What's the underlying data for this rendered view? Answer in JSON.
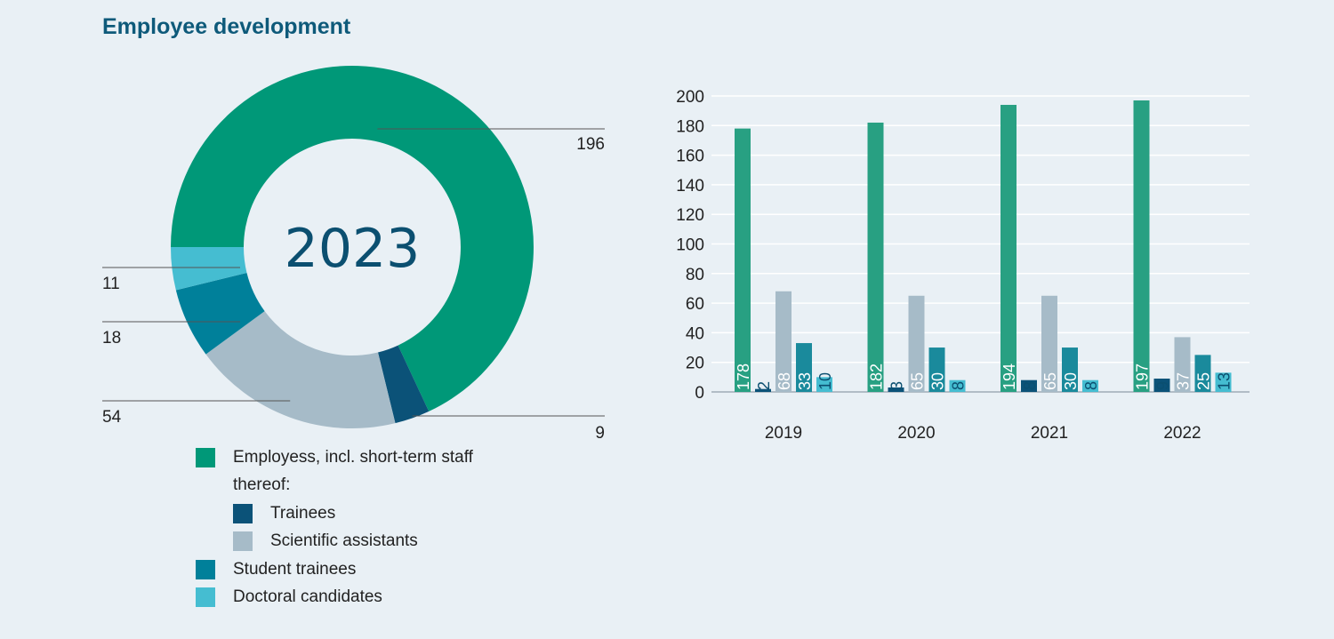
{
  "title": "Employee development",
  "colors": {
    "employees": "#009878",
    "trainees": "#0b5278",
    "scientific": "#a6bbc8",
    "student": "#00809a",
    "doctoral": "#45bdd1",
    "bar_employees": "#28a082",
    "bar_student": "#1a8a9c",
    "gridline": "#ffffff",
    "leader": "#555555",
    "text_dark": "#0b4f70"
  },
  "legend": {
    "employees": "Employess, incl. short-term staff",
    "thereof": "thereof:",
    "trainees": "Trainees",
    "scientific": "Scientific assistants",
    "student": "Student trainees",
    "doctoral": "Doctoral candidates"
  },
  "chart_data": [
    {
      "type": "pie",
      "donut": true,
      "center_label": "2023",
      "labels": [
        "Employess, incl. short-term staff",
        "Trainees",
        "Scientific assistants",
        "Student trainees",
        "Doctoral candidates"
      ],
      "values": [
        196,
        9,
        54,
        18,
        11
      ],
      "value_labels": [
        "196",
        "9",
        "54",
        "18",
        "11"
      ]
    },
    {
      "type": "bar",
      "categories": [
        "2019",
        "2020",
        "2021",
        "2022"
      ],
      "ylim": [
        0,
        200
      ],
      "yticks": [
        0,
        20,
        40,
        60,
        80,
        100,
        120,
        140,
        160,
        180,
        200
      ],
      "grid": true,
      "series": [
        {
          "name": "Employess, incl. short-term staff",
          "values": [
            178,
            182,
            194,
            197
          ]
        },
        {
          "name": "Trainees",
          "values": [
            2,
            3,
            8,
            9
          ]
        },
        {
          "name": "Scientific assistants",
          "values": [
            68,
            65,
            65,
            37
          ]
        },
        {
          "name": "Student trainees",
          "values": [
            33,
            30,
            30,
            25
          ]
        },
        {
          "name": "Doctoral candidates",
          "values": [
            10,
            8,
            8,
            13
          ]
        }
      ]
    }
  ]
}
